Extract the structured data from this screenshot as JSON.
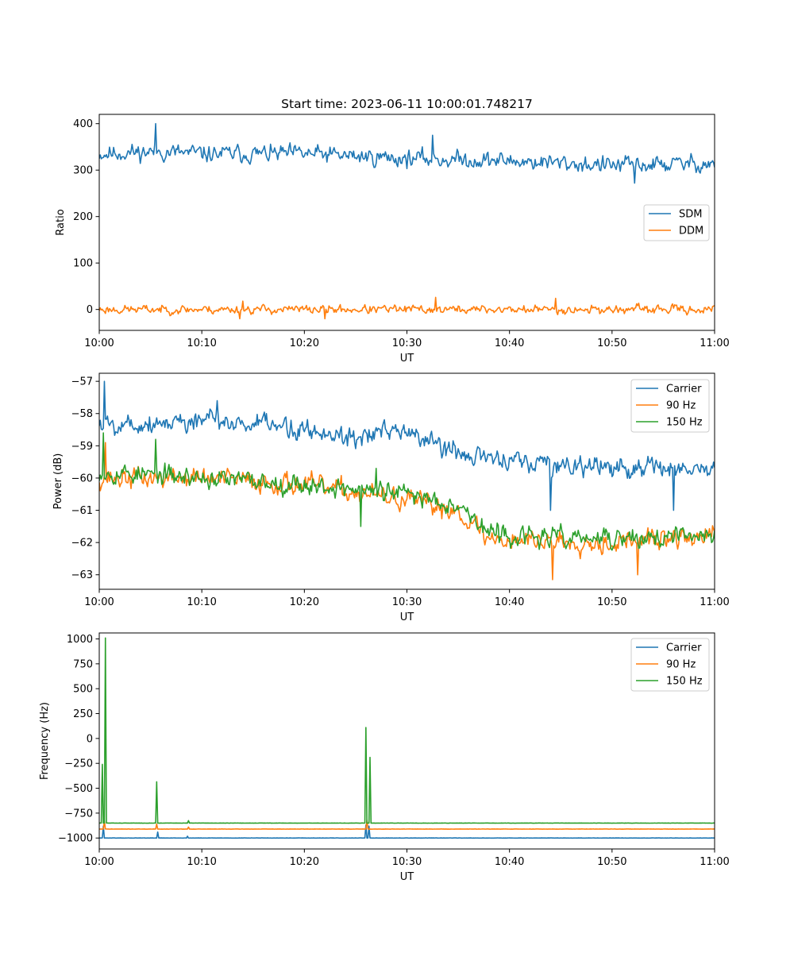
{
  "colors": {
    "blue": "#1f77b4",
    "orange": "#ff7f0e",
    "green": "#2ca02c"
  },
  "chart_data": [
    {
      "type": "line",
      "title": "Start time: 2023-06-11 10:00:01.748217",
      "xlabel": "UT",
      "ylabel": "Ratio",
      "x_ticks": [
        "10:00",
        "10:10",
        "10:20",
        "10:30",
        "10:40",
        "10:50",
        "11:00"
      ],
      "x_range_minutes": [
        0,
        60
      ],
      "ylim": [
        -45,
        420
      ],
      "y_ticks": [
        "400",
        "300",
        "200",
        "100",
        "0"
      ],
      "y_tick_values": [
        400,
        300,
        200,
        100,
        0
      ],
      "legend_position": "center-right",
      "series": [
        {
          "name": "SDM",
          "color": "#1f77b4",
          "trend": [
            [
              0,
              335
            ],
            [
              5.5,
              340
            ],
            [
              10,
              335
            ],
            [
              20,
              335
            ],
            [
              30,
              325
            ],
            [
              40,
              320
            ],
            [
              50,
              310
            ],
            [
              60,
              315
            ]
          ],
          "noise": 18,
          "seed": 11,
          "spikes": [
            [
              5.5,
              400
            ],
            [
              32.5,
              375
            ],
            [
              52.2,
              272
            ]
          ]
        },
        {
          "name": "DDM",
          "color": "#ff7f0e",
          "trend": [
            [
              0,
              0
            ],
            [
              60,
              0
            ]
          ],
          "noise": 9,
          "seed": 23,
          "spikes": [
            [
              13.7,
              -20
            ],
            [
              22,
              -20
            ],
            [
              32.8,
              26
            ],
            [
              44.5,
              24
            ],
            [
              14,
              18
            ]
          ]
        }
      ]
    },
    {
      "type": "line",
      "xlabel": "UT",
      "ylabel": "Power (dB)",
      "x_ticks": [
        "10:00",
        "10:10",
        "10:20",
        "10:30",
        "10:40",
        "10:50",
        "11:00"
      ],
      "x_range_minutes": [
        0,
        60
      ],
      "ylim": [
        -63.45,
        -56.75
      ],
      "y_ticks": [
        "−57",
        "−58",
        "−59",
        "−60",
        "−61",
        "−62",
        "−63"
      ],
      "y_tick_values": [
        -57,
        -58,
        -59,
        -60,
        -61,
        -62,
        -63
      ],
      "legend_position": "top-right",
      "series": [
        {
          "name": "Carrier",
          "color": "#1f77b4",
          "trend": [
            [
              0,
              -58.3
            ],
            [
              5,
              -58.3
            ],
            [
              10,
              -58.2
            ],
            [
              20,
              -58.5
            ],
            [
              25,
              -58.7
            ],
            [
              30,
              -58.6
            ],
            [
              35,
              -59.2
            ],
            [
              40,
              -59.5
            ],
            [
              50,
              -59.7
            ],
            [
              60,
              -59.7
            ]
          ],
          "noise": 0.33,
          "seed": 5,
          "spikes": [
            [
              0.5,
              -57.0
            ],
            [
              11.5,
              -57.6
            ],
            [
              44,
              -61.0
            ],
            [
              56,
              -61.0
            ]
          ]
        },
        {
          "name": "90 Hz",
          "color": "#ff7f0e",
          "trend": [
            [
              0,
              -60.0
            ],
            [
              10,
              -60.0
            ],
            [
              20,
              -60.2
            ],
            [
              30,
              -60.7
            ],
            [
              35,
              -61.0
            ],
            [
              38,
              -61.9
            ],
            [
              40,
              -61.9
            ],
            [
              50,
              -62.0
            ],
            [
              60,
              -61.8
            ]
          ],
          "noise": 0.32,
          "seed": 37,
          "spikes": [
            [
              0.6,
              -58.9
            ],
            [
              44.2,
              -63.15
            ],
            [
              52.5,
              -63.0
            ]
          ]
        },
        {
          "name": "150 Hz",
          "color": "#2ca02c",
          "trend": [
            [
              0,
              -59.8
            ],
            [
              10,
              -60.0
            ],
            [
              20,
              -60.2
            ],
            [
              30,
              -60.5
            ],
            [
              35,
              -60.8
            ],
            [
              38,
              -61.7
            ],
            [
              40,
              -61.8
            ],
            [
              50,
              -61.9
            ],
            [
              60,
              -61.8
            ]
          ],
          "noise": 0.3,
          "seed": 53,
          "spikes": [
            [
              0.4,
              -58.6
            ],
            [
              5.5,
              -58.8
            ],
            [
              25.5,
              -61.5
            ],
            [
              27,
              -59.7
            ]
          ]
        }
      ]
    },
    {
      "type": "line",
      "xlabel": "UT",
      "ylabel": "Frequency (Hz)",
      "x_ticks": [
        "10:00",
        "10:10",
        "10:20",
        "10:30",
        "10:40",
        "10:50",
        "11:00"
      ],
      "x_range_minutes": [
        0,
        60
      ],
      "ylim": [
        -1110,
        1060
      ],
      "y_ticks": [
        "1000",
        "750",
        "500",
        "250",
        "0",
        "−250",
        "−500",
        "−750",
        "−1000"
      ],
      "y_tick_values": [
        1000,
        750,
        500,
        250,
        0,
        -250,
        -500,
        -750,
        -1000
      ],
      "legend_position": "top-right",
      "series": [
        {
          "name": "Carrier",
          "color": "#1f77b4",
          "base": -1000,
          "noise": 1.2,
          "seed": 61,
          "spikes": [
            [
              0.4,
              -880
            ],
            [
              5.65,
              -940
            ],
            [
              8.6,
              -982
            ],
            [
              26.0,
              -870
            ],
            [
              26.3,
              -880
            ]
          ]
        },
        {
          "name": "90 Hz",
          "color": "#ff7f0e",
          "base": -910,
          "noise": 1.0,
          "seed": 71,
          "spikes": [
            [
              0.5,
              -830
            ],
            [
              5.6,
              -860
            ],
            [
              8.65,
              -890
            ],
            [
              26.05,
              -820
            ]
          ]
        },
        {
          "name": "150 Hz",
          "color": "#2ca02c",
          "base": -850,
          "noise": 1.0,
          "seed": 83,
          "spikes": [
            [
              0.55,
              1010
            ],
            [
              0.3,
              -260
            ],
            [
              5.6,
              -435
            ],
            [
              8.65,
              -825
            ],
            [
              26.0,
              110
            ],
            [
              26.4,
              -190
            ]
          ]
        }
      ]
    }
  ]
}
